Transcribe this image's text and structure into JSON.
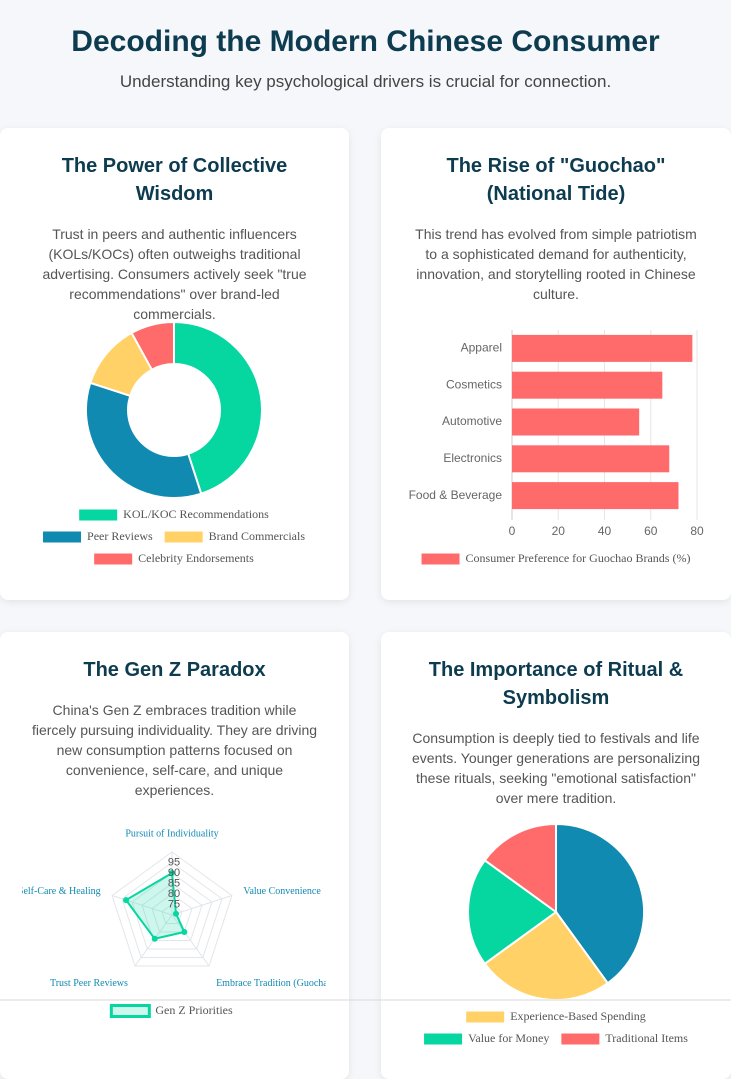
{
  "header": {
    "title": "Decoding the Modern Chinese Consumer",
    "subtitle": "Understanding key psychological drivers is crucial for connection."
  },
  "chart_data": [
    {
      "type": "doughnut",
      "title": "The Power of Collective Wisdom",
      "subtitle": "Trust in peers and authentic influencers (KOLs/KOCs) often outweighs traditional advertising. Consumers actively seek \"true recommendations\" over brand-led commercials.",
      "categories": [
        "KOL/KOC Recommendations",
        "Peer Reviews",
        "Brand Commercials",
        "Celebrity Endorsements"
      ],
      "values": [
        45,
        35,
        12,
        8
      ],
      "colors": [
        "#06d6a0",
        "#118ab2",
        "#ffd166",
        "#ff6b6b"
      ]
    },
    {
      "type": "bar",
      "orientation": "horizontal",
      "title": "The Rise of \"Guochao\" (National Tide)",
      "subtitle": "This trend has evolved from simple patriotism to a sophisticated demand for authenticity, innovation, and storytelling rooted in Chinese culture.",
      "categories": [
        "Apparel",
        "Cosmetics",
        "Automotive",
        "Electronics",
        "Food & Beverage"
      ],
      "series": [
        {
          "name": "Consumer Preference for Guochao Brands (%)",
          "color": "#ff6b6b",
          "values": [
            78,
            65,
            55,
            68,
            72
          ]
        }
      ],
      "xlim": [
        0,
        80
      ],
      "xticks": [
        0,
        20,
        40,
        60,
        80
      ],
      "grid": true
    },
    {
      "type": "radar",
      "title": "The Gen Z Paradox",
      "subtitle": "China's Gen Z embraces tradition while fiercely pursuing individuality. They are driving new consumption patterns focused on convenience, self-care, and unique experiences.",
      "categories": [
        "Pursuit of Individuality",
        "Value Convenience",
        "Embrace Tradition (Guochao)",
        "Trust Peer Reviews",
        "Self-Care & Healing"
      ],
      "series": [
        {
          "name": "Gen Z Priorities",
          "color": "#06d6a0",
          "values": [
            90,
            72,
            80,
            84,
            93
          ]
        }
      ],
      "rlim": [
        70,
        100
      ],
      "rticks": [
        75,
        80,
        85,
        90,
        95
      ]
    },
    {
      "type": "pie",
      "title": "The Importance of Ritual & Symbolism",
      "subtitle": "Consumption is deeply tied to festivals and life events. Younger generations are personalizing these rituals, seeking \"emotional satisfaction\" over mere tradition.",
      "categories": [
        null,
        "Experience-Based Spending",
        "Value for Money",
        "Traditional Items"
      ],
      "values": [
        40,
        25,
        20,
        15
      ],
      "colors": [
        "#118ab2",
        "#ffd166",
        "#06d6a0",
        "#ff6b6b"
      ]
    }
  ]
}
